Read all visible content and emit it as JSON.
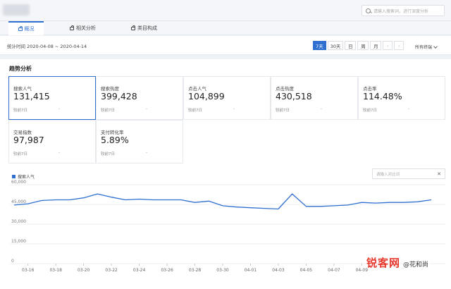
{
  "header": {
    "search_placeholder": "请输入搜索词，进行深度分析"
  },
  "tabs": [
    {
      "label": "概况"
    },
    {
      "label": "相关分析"
    },
    {
      "label": "类目构成"
    }
  ],
  "datebar": {
    "range_text": "统计时间 2020-04-08 ~ 2020-04-14",
    "ranges": [
      "7天",
      "30天",
      "日",
      "周",
      "月"
    ],
    "active_range": "7天",
    "terminal": "所有终端"
  },
  "section_title": "趋势分析",
  "cards": [
    {
      "label": "搜索人气",
      "value": "131,415",
      "compare": "较前7日",
      "change": "-"
    },
    {
      "label": "搜索热度",
      "value": "399,428",
      "compare": "较前7日",
      "change": "-"
    },
    {
      "label": "点击人气",
      "value": "104,899",
      "compare": "较前7日",
      "change": "-"
    },
    {
      "label": "点击热度",
      "value": "430,518",
      "compare": "较前7日",
      "change": "-"
    },
    {
      "label": "点击率",
      "value": "114.48%",
      "compare": "较前7日",
      "change": "-"
    },
    {
      "label": "交易指数",
      "value": "97,987",
      "compare": "较前7日",
      "change": "-"
    },
    {
      "label": "支付转化率",
      "value": "5.89%",
      "compare": "较前7日",
      "change": "-"
    }
  ],
  "chart_legend": "搜索人气",
  "compare_placeholder": "请输入对比词",
  "accent_color": "#2f6fd0",
  "watermark": {
    "main": "锐客网",
    "sub": "@花和尚"
  },
  "chart_data": {
    "type": "line",
    "series": [
      {
        "name": "搜索人气",
        "color": "#2f6fd0",
        "x": [
          "03-15",
          "03-16",
          "03-17",
          "03-18",
          "03-19",
          "03-20",
          "03-21",
          "03-22",
          "03-23",
          "03-24",
          "03-25",
          "03-26",
          "03-27",
          "03-28",
          "03-29",
          "03-30",
          "03-31",
          "04-01",
          "04-02",
          "04-03",
          "04-04",
          "04-05",
          "04-06",
          "04-07",
          "04-08",
          "04-09",
          "04-10",
          "04-11",
          "04-12",
          "04-13",
          "04-14"
        ],
        "values": [
          44500,
          45500,
          48000,
          48500,
          48500,
          50000,
          53000,
          50500,
          48500,
          49000,
          48500,
          48500,
          48500,
          46500,
          47500,
          44000,
          43000,
          42500,
          42000,
          41500,
          53000,
          43500,
          43500,
          44000,
          44500,
          46500,
          46000,
          46500,
          46500,
          47000,
          48500
        ]
      }
    ],
    "xticks": [
      "03-16",
      "03-18",
      "03-20",
      "03-22",
      "03-24",
      "03-26",
      "03-28",
      "03-30",
      "04-01",
      "04-03",
      "04-05",
      "04-07",
      "04-09"
    ],
    "yticks": [
      "0",
      "15,000",
      "30,000",
      "45,000",
      "60,000"
    ],
    "ylim": [
      0,
      60000
    ],
    "grid": true,
    "legend": "top-left"
  }
}
